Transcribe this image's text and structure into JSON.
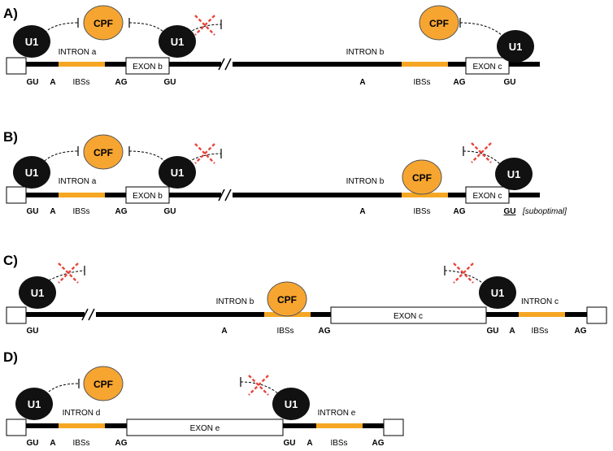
{
  "panels": [
    {
      "label": "A)",
      "intron_a": "INTRON a",
      "exon_b": "EXON b",
      "intron_b": "INTRON b",
      "exon_c": "EXON c",
      "ibs_1": "IBSs",
      "ibs_2": "IBSs",
      "u1": "U1",
      "cpf": "CPF",
      "bottom": [
        "GU",
        "A",
        "AG",
        "GU",
        "A",
        "AG",
        "GU"
      ]
    },
    {
      "label": "B)",
      "intron_a": "INTRON a",
      "exon_b": "EXON b",
      "intron_b": "INTRON b",
      "exon_c": "EXON c",
      "ibs_1": "IBSs",
      "ibs_2": "IBSs",
      "u1": "U1",
      "cpf": "CPF",
      "bottom": [
        "GU",
        "A",
        "AG",
        "GU",
        "A",
        "AG",
        "GU"
      ],
      "suboptimal": "[suboptimal]"
    },
    {
      "label": "C)",
      "intron_b": "INTRON b",
      "exon_c": "EXON c",
      "intron_c": "INTRON c",
      "ibs_1": "IBSs",
      "ibs_2": "IBSs",
      "u1": "U1",
      "cpf": "CPF",
      "bottom": [
        "GU",
        "A",
        "AG",
        "GU",
        "A",
        "AG"
      ]
    },
    {
      "label": "D)",
      "intron_d": "INTRON d",
      "exon_e": "EXON e",
      "intron_e": "INTRON e",
      "ibs_1": "IBSs",
      "ibs_2": "IBSs",
      "u1": "U1",
      "cpf": "CPF",
      "bottom": [
        "GU",
        "A",
        "AG",
        "GU",
        "A",
        "AG"
      ]
    }
  ],
  "colors": {
    "strand": "#000000",
    "ibs": "#f5a623",
    "cpf_fill": "#f7a531",
    "u1_fill": "#111111",
    "cross": "#e8453c"
  }
}
